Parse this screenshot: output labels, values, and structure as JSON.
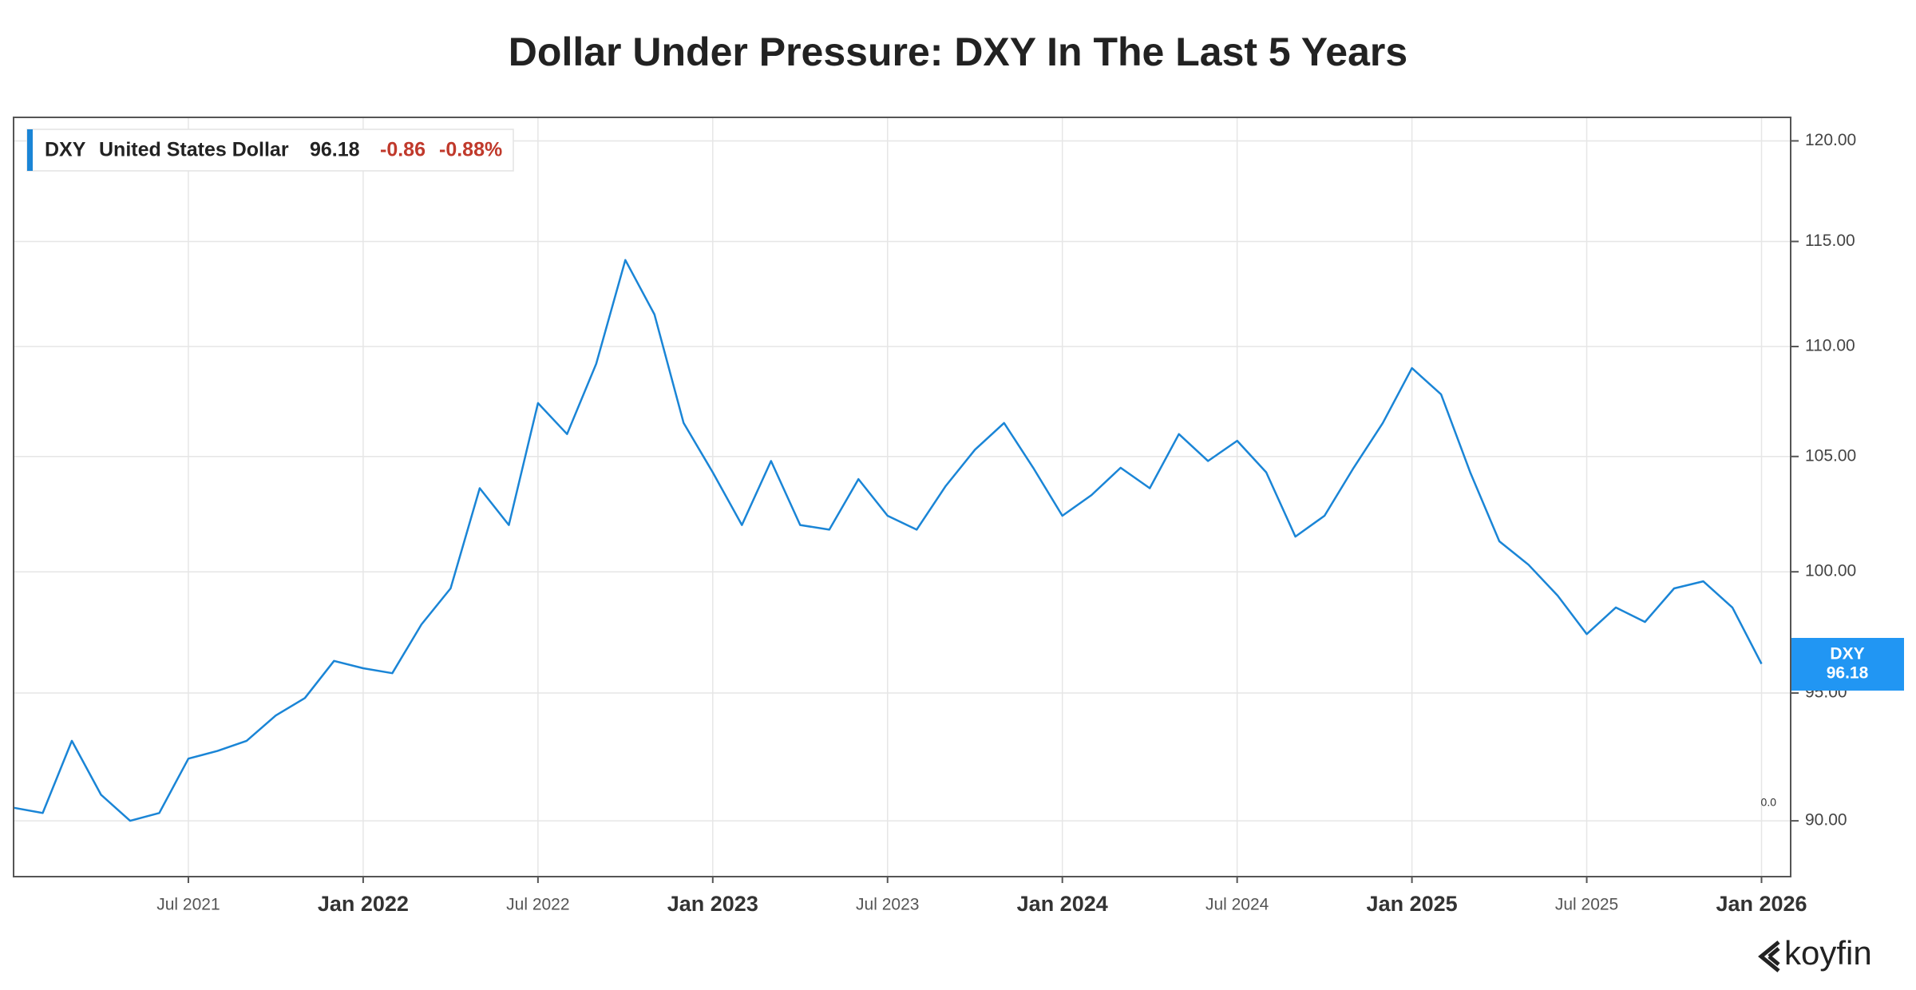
{
  "chart_data": {
    "type": "line",
    "title": "Dollar Under Pressure: DXY In The Last 5 Years",
    "x": [
      "2021-01",
      "2021-02",
      "2021-03",
      "2021-04",
      "2021-05",
      "2021-06",
      "2021-07",
      "2021-08",
      "2021-09",
      "2021-10",
      "2021-11",
      "2021-12",
      "2022-01",
      "2022-02",
      "2022-03",
      "2022-04",
      "2022-05",
      "2022-06",
      "2022-07",
      "2022-08",
      "2022-09",
      "2022-10",
      "2022-11",
      "2022-12",
      "2023-01",
      "2023-02",
      "2023-03",
      "2023-04",
      "2023-05",
      "2023-06",
      "2023-07",
      "2023-08",
      "2023-09",
      "2023-10",
      "2023-11",
      "2023-12",
      "2024-01",
      "2024-02",
      "2024-03",
      "2024-04",
      "2024-05",
      "2024-06",
      "2024-07",
      "2024-08",
      "2024-09",
      "2024-10",
      "2024-11",
      "2024-12",
      "2025-01",
      "2025-02",
      "2025-03",
      "2025-04",
      "2025-05",
      "2025-06",
      "2025-07",
      "2025-08",
      "2025-09",
      "2025-10",
      "2025-11",
      "2025-12",
      "2026-01"
    ],
    "series": [
      {
        "name": "DXY",
        "description": "United States Dollar",
        "color": "#1a85d6",
        "values": [
          90.5,
          90.3,
          93.1,
          91.0,
          90.0,
          90.3,
          92.4,
          92.7,
          93.1,
          94.1,
          94.8,
          96.3,
          96.0,
          95.8,
          97.8,
          99.3,
          103.6,
          102.0,
          107.4,
          106.0,
          109.2,
          114.1,
          111.5,
          106.5,
          104.3,
          102.0,
          104.8,
          102.0,
          101.8,
          104.0,
          102.4,
          101.8,
          103.7,
          105.3,
          106.5,
          104.5,
          102.4,
          103.3,
          104.5,
          103.6,
          106.0,
          104.8,
          105.7,
          104.3,
          101.5,
          102.4,
          104.5,
          106.5,
          109.0,
          107.8,
          104.3,
          101.3,
          100.3,
          99.0,
          97.4,
          98.5,
          97.9,
          99.3,
          99.6,
          98.5,
          96.18
        ]
      }
    ],
    "legend": {
      "last": 96.18,
      "change": -0.86,
      "change_pct": "-0.88%"
    },
    "annotation": "0.0",
    "xlim": [
      "2021-01",
      "2026-02"
    ],
    "xticks": [
      {
        "value": "2021-07",
        "label": "Jul 2021"
      },
      {
        "value": "2022-01",
        "label": "Jan 2022"
      },
      {
        "value": "2022-07",
        "label": "Jul 2022"
      },
      {
        "value": "2023-01",
        "label": "Jan 2023"
      },
      {
        "value": "2023-07",
        "label": "Jul 2023"
      },
      {
        "value": "2024-01",
        "label": "Jan 2024"
      },
      {
        "value": "2024-07",
        "label": "Jul 2024"
      },
      {
        "value": "2025-01",
        "label": "Jan 2025"
      },
      {
        "value": "2025-07",
        "label": "Jul 2025"
      },
      {
        "value": "2026-01",
        "label": "Jan 2026"
      }
    ],
    "ylim": [
      87.9,
      121.2
    ],
    "yticks": [
      {
        "value": 90,
        "label": "90.00"
      },
      {
        "value": 95,
        "label": "95.00"
      },
      {
        "value": 100,
        "label": "100.00"
      },
      {
        "value": 105,
        "label": "105.00"
      },
      {
        "value": 110,
        "label": "110.00"
      },
      {
        "value": 115,
        "label": "115.00"
      },
      {
        "value": 120,
        "label": "120.00"
      }
    ],
    "log_scale": true,
    "grid": true
  },
  "brand": "koyfin"
}
